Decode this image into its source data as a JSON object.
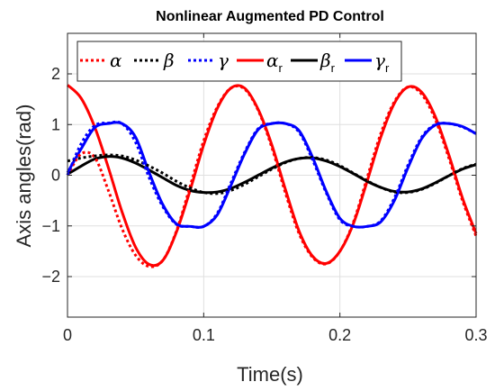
{
  "chart_data": {
    "type": "line",
    "title": "Nonlinear Augmented PD Control",
    "xlabel": "Time(s)",
    "ylabel": "Axis angles(rad)",
    "xlim": [
      0,
      0.3
    ],
    "ylim": [
      -2.8,
      2.8
    ],
    "xticks": [
      0,
      0.1,
      0.2,
      0.3
    ],
    "xtick_labels": [
      "0",
      "0.1",
      "0.2",
      "0.3"
    ],
    "yticks": [
      -2,
      -1,
      0,
      1,
      2
    ],
    "ytick_labels": [
      "−2",
      "−1",
      "0",
      "1",
      "2"
    ],
    "grid": true,
    "legend_position": "top",
    "x": [
      0,
      0.01,
      0.02,
      0.03,
      0.04,
      0.05,
      0.06,
      0.07,
      0.08,
      0.09,
      0.1,
      0.11,
      0.12,
      0.13,
      0.14,
      0.15,
      0.16,
      0.17,
      0.18,
      0.19,
      0.2,
      0.21,
      0.22,
      0.23,
      0.24,
      0.25,
      0.26,
      0.27,
      0.28,
      0.29,
      0.3
    ],
    "series": [
      {
        "name": "α",
        "sub": "",
        "color": "#ff0000",
        "style": "dotted",
        "values": [
          0,
          0.42,
          0.35,
          -0.3,
          -1.05,
          -1.58,
          -1.8,
          -1.68,
          -1.1,
          -0.22,
          0.68,
          1.35,
          1.72,
          1.7,
          1.28,
          0.55,
          -0.35,
          -1.15,
          -1.62,
          -1.75,
          -1.5,
          -0.92,
          -0.05,
          0.82,
          1.45,
          1.74,
          1.6,
          1.1,
          0.34,
          -0.5,
          -1.2
        ]
      },
      {
        "name": "β",
        "sub": "",
        "color": "#000000",
        "style": "dotted",
        "values": [
          0.28,
          0.34,
          0.38,
          0.4,
          0.38,
          0.3,
          0.18,
          0.04,
          -0.12,
          -0.25,
          -0.34,
          -0.36,
          -0.3,
          -0.18,
          -0.03,
          0.12,
          0.25,
          0.33,
          0.35,
          0.3,
          0.19,
          0.04,
          -0.11,
          -0.24,
          -0.33,
          -0.34,
          -0.28,
          -0.16,
          -0.01,
          0.13,
          0.22
        ]
      },
      {
        "name": "γ",
        "sub": "",
        "color": "#0000ff",
        "style": "dotted",
        "values": [
          0,
          0.62,
          0.98,
          1.03,
          1.02,
          0.65,
          -0.05,
          -0.62,
          -0.97,
          -1.01,
          -1.01,
          -0.75,
          -0.15,
          0.45,
          0.92,
          1.02,
          1.02,
          0.85,
          0.3,
          -0.35,
          -0.88,
          -1.01,
          -1.01,
          -0.9,
          -0.45,
          0.2,
          0.75,
          1.0,
          1.02,
          0.95,
          0.82
        ]
      },
      {
        "name": "α",
        "sub": "r",
        "color": "#ff0000",
        "style": "solid",
        "values": [
          1.78,
          1.52,
          0.95,
          0.15,
          -0.72,
          -1.42,
          -1.76,
          -1.68,
          -1.12,
          -0.3,
          0.6,
          1.32,
          1.72,
          1.72,
          1.3,
          0.6,
          -0.28,
          -1.1,
          -1.6,
          -1.74,
          -1.5,
          -0.95,
          -0.12,
          0.75,
          1.42,
          1.74,
          1.64,
          1.16,
          0.4,
          -0.45,
          -1.15
        ]
      },
      {
        "name": "β",
        "sub": "r",
        "color": "#000000",
        "style": "solid",
        "values": [
          0.02,
          0.18,
          0.32,
          0.37,
          0.34,
          0.24,
          0.1,
          -0.05,
          -0.2,
          -0.3,
          -0.34,
          -0.33,
          -0.26,
          -0.14,
          0.0,
          0.14,
          0.26,
          0.33,
          0.34,
          0.28,
          0.17,
          0.03,
          -0.12,
          -0.24,
          -0.32,
          -0.33,
          -0.27,
          -0.15,
          -0.01,
          0.12,
          0.21
        ]
      },
      {
        "name": "γ",
        "sub": "r",
        "color": "#0000ff",
        "style": "solid",
        "values": [
          0.05,
          0.52,
          0.94,
          1.02,
          1.02,
          0.75,
          0.05,
          -0.58,
          -0.96,
          -1.01,
          -1.01,
          -0.78,
          -0.2,
          0.42,
          0.9,
          1.02,
          1.02,
          0.88,
          0.35,
          -0.32,
          -0.85,
          -1.01,
          -1.01,
          -0.92,
          -0.5,
          0.15,
          0.72,
          0.99,
          1.02,
          0.96,
          0.82
        ]
      }
    ]
  }
}
